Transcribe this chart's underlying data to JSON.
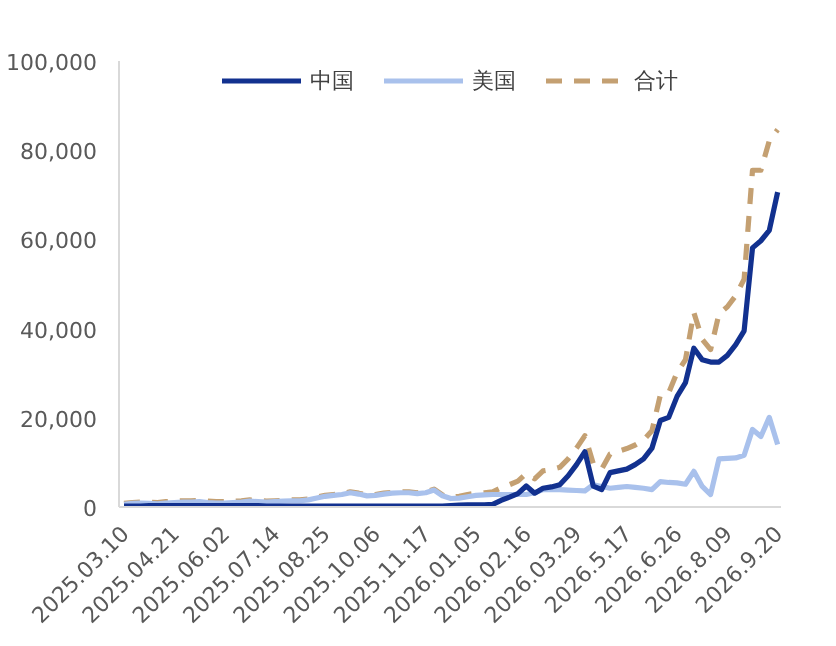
{
  "chart_data": {
    "type": "line",
    "categories": [
      "2025.03.10",
      null,
      null,
      null,
      null,
      null,
      "2025.04.21",
      null,
      null,
      null,
      null,
      null,
      "2025.06.02",
      null,
      null,
      null,
      null,
      null,
      "2025.07.14",
      null,
      null,
      null,
      null,
      null,
      "2025.08.25",
      null,
      null,
      null,
      null,
      null,
      "2025.10.06",
      null,
      null,
      null,
      null,
      null,
      "2025.11.17",
      null,
      null,
      null,
      null,
      null,
      "2026.01.05",
      null,
      null,
      null,
      null,
      null,
      "2026.02.16",
      null,
      null,
      null,
      null,
      null,
      "2026.03.29",
      null,
      null,
      null,
      null,
      null,
      "2026.5.17",
      null,
      null,
      null,
      null,
      null,
      "2026.6.26",
      null,
      null,
      null,
      null,
      null,
      "2026.8.09",
      null,
      null,
      null,
      null,
      null,
      "2026.9.20"
    ],
    "series": [
      {
        "name": "中国",
        "color": "#12318f",
        "line_style": "solid",
        "values": [
          200,
          200,
          200,
          300,
          300,
          300,
          300,
          300,
          300,
          300,
          300,
          300,
          300,
          300,
          300,
          300,
          300,
          200,
          200,
          200,
          200,
          200,
          200,
          200,
          200,
          200,
          200,
          200,
          200,
          200,
          200,
          200,
          200,
          200,
          200,
          200,
          200,
          200,
          200,
          300,
          400,
          500,
          500,
          500,
          600,
          1500,
          2200,
          3000,
          4700,
          3100,
          4200,
          4500,
          5000,
          7000,
          9500,
          12400,
          4700,
          3900,
          7700,
          8100,
          8500,
          9500,
          10800,
          13200,
          19400,
          20100,
          24800,
          27900,
          35600,
          33000,
          32500,
          32500,
          34000,
          36400,
          39500,
          58100,
          59700,
          62000,
          70600
        ]
      },
      {
        "name": "美国",
        "color": "#a9c1ec",
        "line_style": "solid",
        "values": [
          600,
          800,
          900,
          800,
          700,
          900,
          1000,
          1100,
          1100,
          1200,
          1000,
          900,
          900,
          1000,
          1100,
          1300,
          1200,
          1100,
          1200,
          1300,
          1400,
          1400,
          1600,
          2000,
          2400,
          2600,
          2800,
          3200,
          2900,
          2500,
          2600,
          2900,
          3100,
          3200,
          3200,
          3000,
          3200,
          3800,
          2500,
          1900,
          2000,
          2300,
          2600,
          2700,
          2800,
          2800,
          2800,
          2800,
          2800,
          3200,
          3900,
          3900,
          3900,
          3800,
          3700,
          3600,
          5000,
          4600,
          4200,
          4400,
          4600,
          4400,
          4200,
          3900,
          5700,
          5500,
          5400,
          5100,
          8000,
          4600,
          2800,
          10800,
          10900,
          11000,
          11600,
          17400,
          15800,
          20100,
          14000
        ]
      },
      {
        "name": "合计",
        "color": "#c4a072",
        "line_style": "dashed",
        "values": [
          800,
          1000,
          1100,
          1100,
          1000,
          1200,
          1300,
          1400,
          1400,
          1500,
          1300,
          1200,
          1200,
          1300,
          1400,
          1600,
          1500,
          1300,
          1400,
          1500,
          1600,
          1600,
          1800,
          2200,
          2600,
          2800,
          3000,
          3400,
          3100,
          2700,
          2800,
          3100,
          3300,
          3400,
          3400,
          3200,
          3400,
          4000,
          2700,
          2200,
          2400,
          2800,
          3100,
          3200,
          3400,
          4300,
          5000,
          5800,
          7500,
          6300,
          8100,
          8400,
          8900,
          10800,
          13200,
          16000,
          9700,
          8500,
          11900,
          12500,
          13100,
          13900,
          15000,
          17100,
          25100,
          25600,
          30200,
          33000,
          43600,
          37600,
          35300,
          43300,
          44900,
          47400,
          51100,
          75500,
          75500,
          82100,
          84600
        ]
      }
    ],
    "ylim": [
      0,
      100000
    ],
    "yticks": [
      {
        "value": 0,
        "label": "0"
      },
      {
        "value": 20000,
        "label": "20,000"
      },
      {
        "value": 40000,
        "label": "40,000"
      },
      {
        "value": 60000,
        "label": "60,000"
      },
      {
        "value": 80000,
        "label": "80,000"
      },
      {
        "value": 100000,
        "label": "100,000"
      }
    ],
    "grid": false,
    "legend": "top",
    "marker": "none"
  }
}
